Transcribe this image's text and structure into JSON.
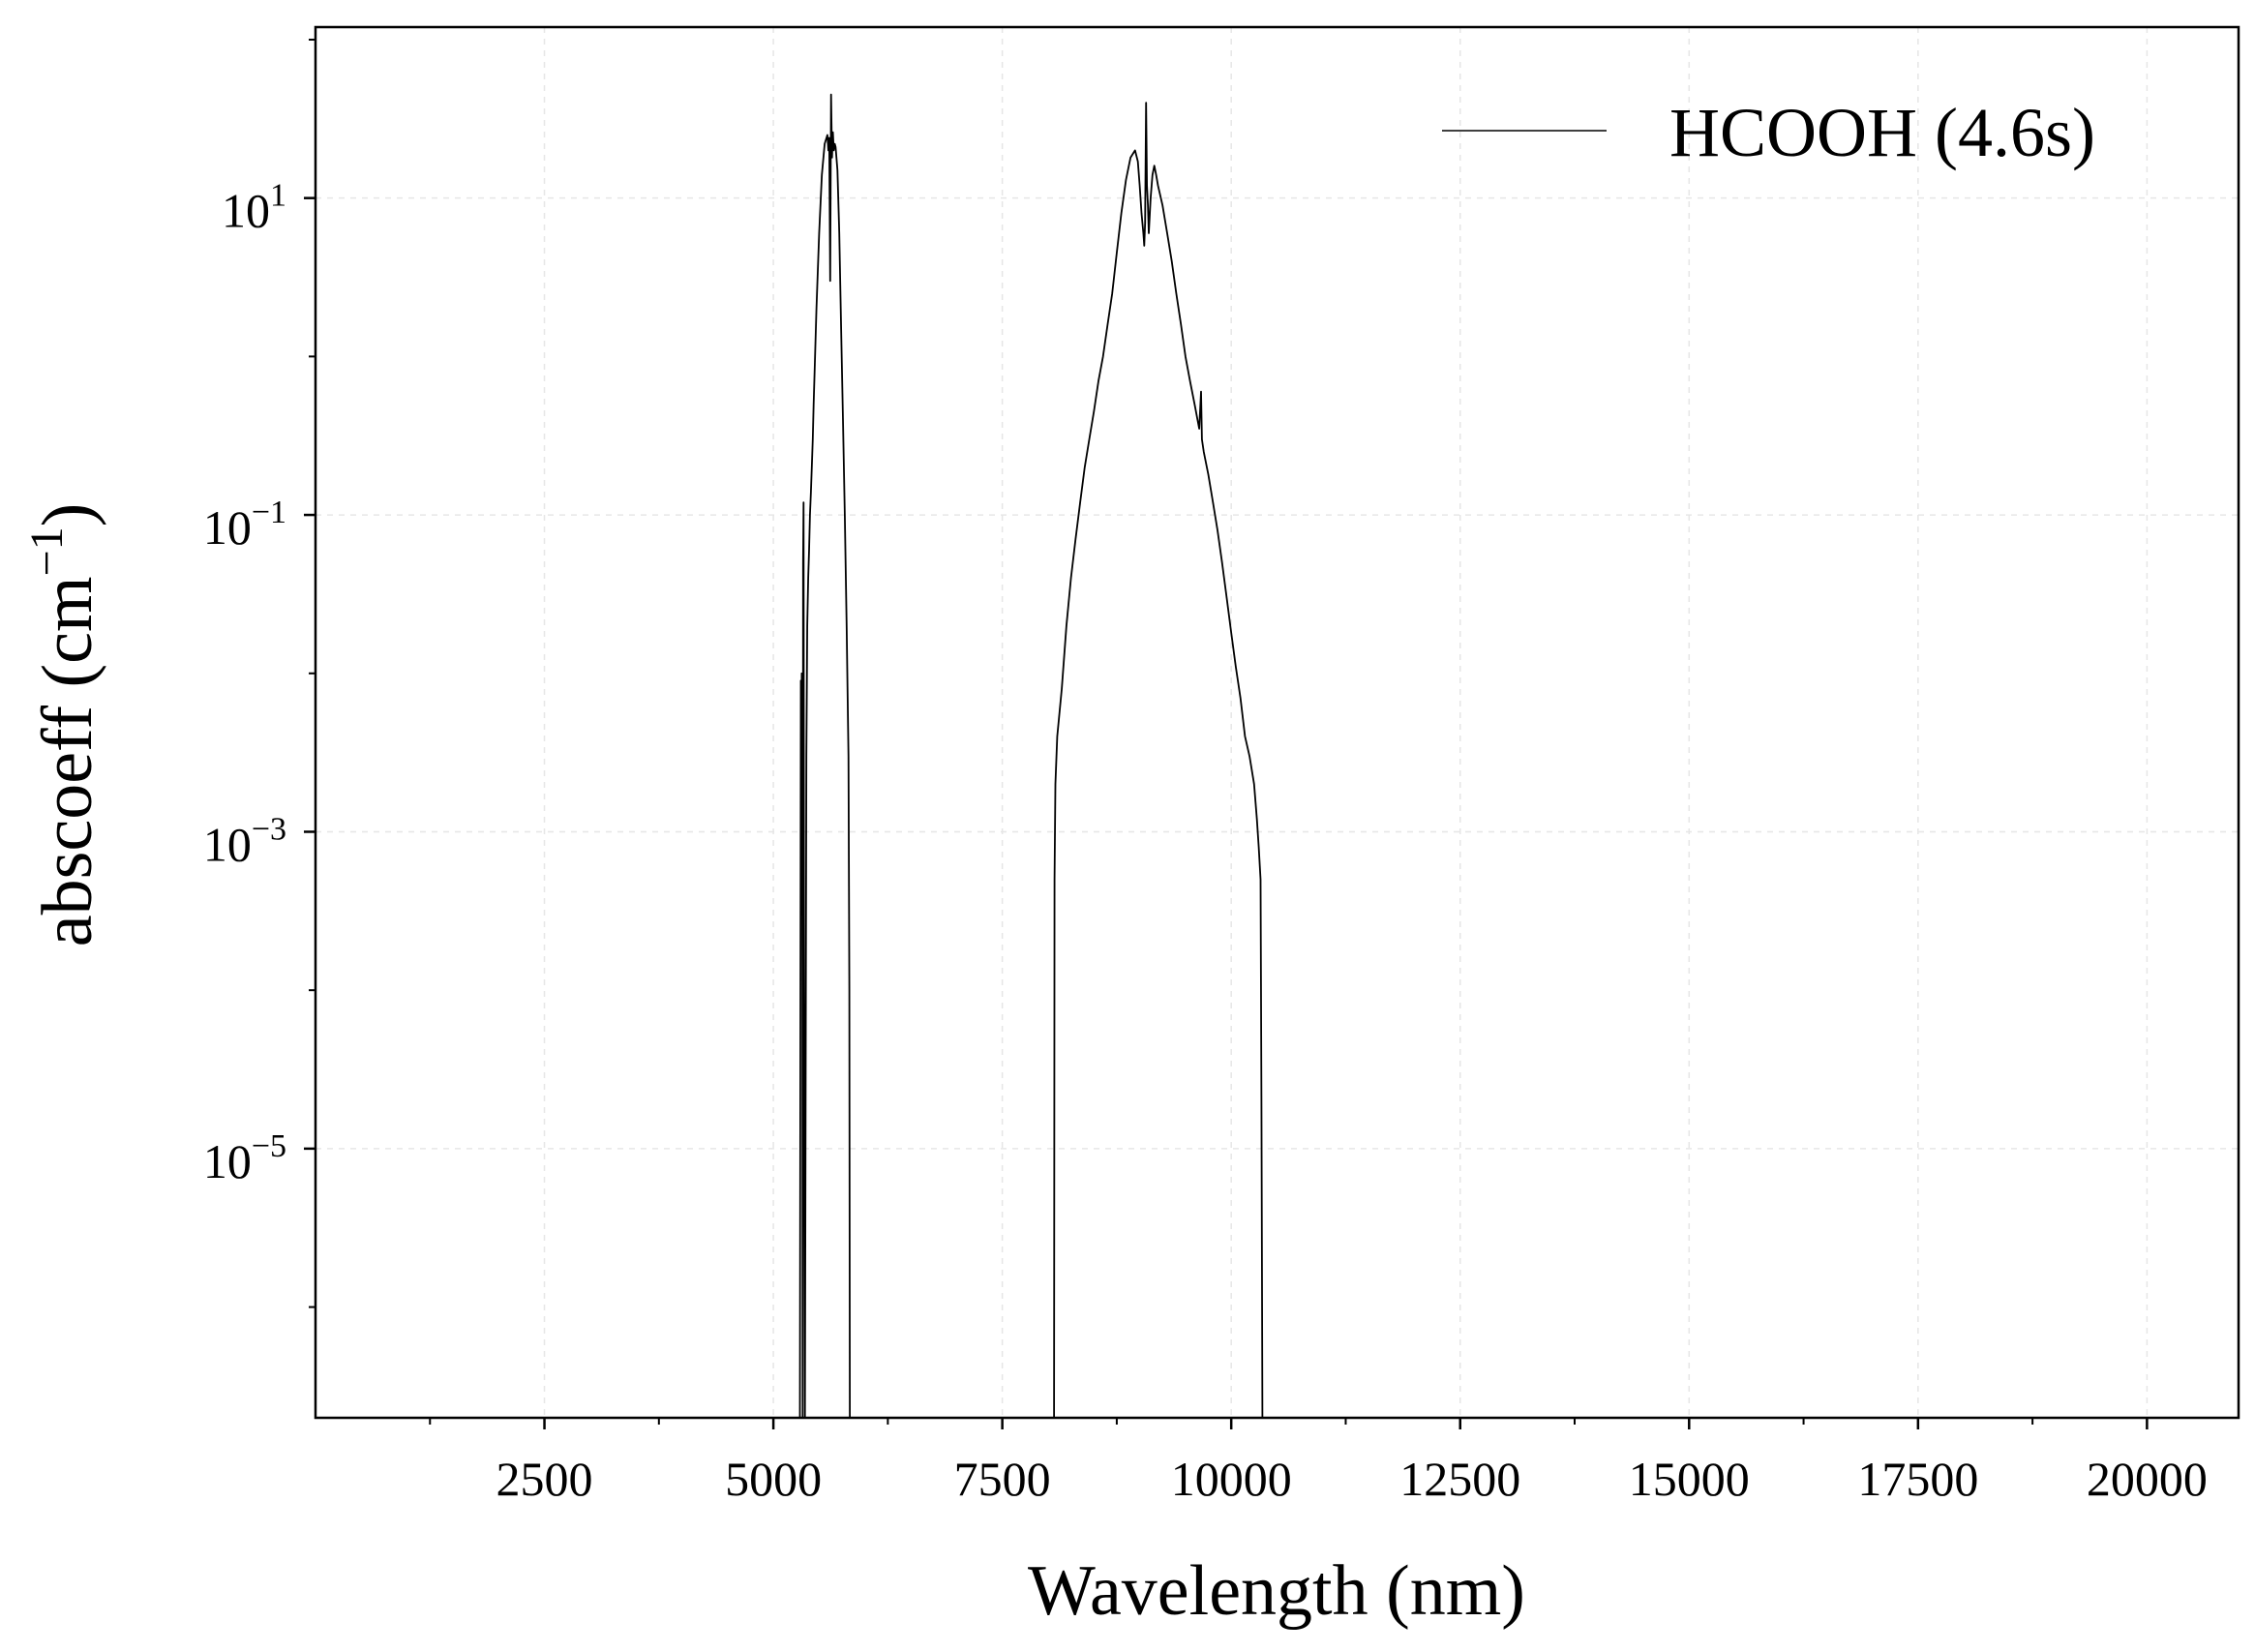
{
  "chart_data": {
    "type": "line",
    "title": "",
    "xlabel": "Wavelength (nm)",
    "ylabel": "abscoeff (cm",
    "ylabel_exponent": "−1",
    "ylabel_close": ")",
    "xlim": [
      0,
      21000
    ],
    "ylim": [
      2e-07,
      120
    ],
    "yscale": "log",
    "grid": true,
    "legend_position": "top-right",
    "x_ticks": [
      {
        "value": 2500,
        "label": "2500"
      },
      {
        "value": 5000,
        "label": "5000"
      },
      {
        "value": 7500,
        "label": "7500"
      },
      {
        "value": 10000,
        "label": "10000"
      },
      {
        "value": 12500,
        "label": "12500"
      },
      {
        "value": 15000,
        "label": "15000"
      },
      {
        "value": 17500,
        "label": "17500"
      },
      {
        "value": 20000,
        "label": "20000"
      }
    ],
    "y_ticks": [
      {
        "value": 10,
        "base": "10",
        "exp": "1"
      },
      {
        "value": 0.1,
        "base": "10",
        "exp": "−1"
      },
      {
        "value": 0.001,
        "base": "10",
        "exp": "−3"
      },
      {
        "value": 1e-05,
        "base": "10",
        "exp": "−5"
      }
    ],
    "series": [
      {
        "name": "HCOOH (4.6s)",
        "color": "#000000",
        "x": [
          5290,
          5300,
          5305,
          5310,
          5315,
          5320,
          5325,
          5330,
          5335,
          5345,
          5360,
          5370,
          5380,
          5390,
          5400,
          5410,
          5420,
          5430,
          5440,
          5450,
          5470,
          5500,
          5530,
          5560,
          5590,
          5600,
          5610,
          5620,
          5630,
          5640,
          5650,
          5660,
          5670,
          5680,
          5700,
          5720,
          5740,
          5760,
          5780,
          5800,
          5820,
          5830,
          5835,
          8065,
          8070,
          8080,
          8100,
          8150,
          8200,
          8250,
          8300,
          8350,
          8400,
          8450,
          8500,
          8550,
          8600,
          8650,
          8700,
          8750,
          8800,
          8850,
          8900,
          8950,
          8980,
          9000,
          9020,
          9040,
          9050,
          9060,
          9070,
          9080,
          9090,
          9100,
          9120,
          9140,
          9160,
          9180,
          9200,
          9250,
          9300,
          9350,
          9400,
          9450,
          9500,
          9550,
          9600,
          9650,
          9670,
          9680,
          9700,
          9750,
          9800,
          9850,
          9900,
          9950,
          10000,
          10050,
          10100,
          10150,
          10200,
          10250,
          10280,
          10300,
          10320,
          10330,
          10340
        ],
        "y": [
          2e-07,
          0.009,
          0.0003,
          0.01,
          0.002,
          2e-07,
          0.05,
          0.12,
          0.0001,
          2e-07,
          0.003,
          0.02,
          0.04,
          0.06,
          0.1,
          0.14,
          0.2,
          0.3,
          0.5,
          0.8,
          2,
          6,
          14,
          22,
          25,
          20,
          24,
          3,
          45,
          18,
          26,
          20,
          22,
          21,
          15,
          6,
          1.5,
          0.4,
          0.1,
          0.02,
          0.003,
          0.0001,
          2e-07,
          2e-07,
          0.0005,
          0.002,
          0.004,
          0.008,
          0.02,
          0.04,
          0.07,
          0.12,
          0.2,
          0.3,
          0.45,
          0.7,
          1.0,
          1.6,
          2.5,
          4.5,
          8,
          13,
          18,
          20,
          17,
          12,
          8,
          6,
          5,
          7,
          40,
          12,
          9,
          6,
          10,
          14,
          16,
          14,
          12,
          9,
          6,
          4,
          2.5,
          1.6,
          1.0,
          0.7,
          0.5,
          0.35,
          0.6,
          0.3,
          0.25,
          0.18,
          0.12,
          0.08,
          0.05,
          0.03,
          0.018,
          0.011,
          0.007,
          0.004,
          0.003,
          0.002,
          0.0012,
          0.0008,
          0.0005,
          2e-05,
          2e-07
        ]
      }
    ]
  }
}
